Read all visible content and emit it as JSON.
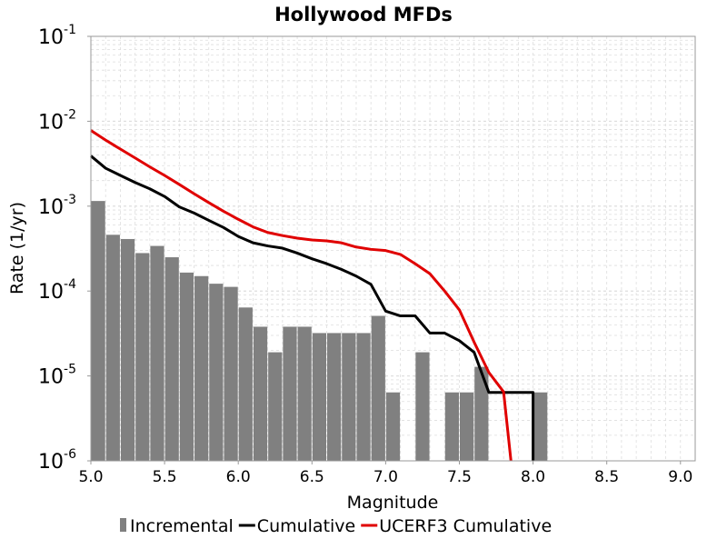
{
  "chart_data": {
    "type": "bar",
    "title": "Hollywood MFDs",
    "xlabel": "Magnitude",
    "ylabel": "Rate (1/yr)",
    "xlim": [
      5.0,
      9.1
    ],
    "ylim": [
      1e-06,
      0.1
    ],
    "yscale": "log",
    "grid": true,
    "legend_position": "bottom",
    "x_ticks": [
      "5.0",
      "5.5",
      "6.0",
      "6.5",
      "7.0",
      "7.5",
      "8.0",
      "8.5",
      "9.0"
    ],
    "y_ticks": [
      {
        "base": "10",
        "exp": "-6"
      },
      {
        "base": "10",
        "exp": "-5"
      },
      {
        "base": "10",
        "exp": "-4"
      },
      {
        "base": "10",
        "exp": "-3"
      },
      {
        "base": "10",
        "exp": "-2"
      },
      {
        "base": "10",
        "exp": "-1"
      }
    ],
    "series": [
      {
        "name": "Incremental",
        "kind": "bar",
        "color": "#808080",
        "bar_width": 0.1,
        "points": [
          [
            5.05,
            0.00115
          ],
          [
            5.15,
            0.00046
          ],
          [
            5.25,
            0.00041
          ],
          [
            5.35,
            0.00028
          ],
          [
            5.45,
            0.00034
          ],
          [
            5.55,
            0.00025
          ],
          [
            5.65,
            0.000165
          ],
          [
            5.75,
            0.00015
          ],
          [
            5.85,
            0.000122
          ],
          [
            5.95,
            0.000112
          ],
          [
            6.05,
            6.4e-05
          ],
          [
            6.15,
            3.8e-05
          ],
          [
            6.25,
            1.9e-05
          ],
          [
            6.35,
            3.8e-05
          ],
          [
            6.45,
            3.8e-05
          ],
          [
            6.55,
            3.2e-05
          ],
          [
            6.65,
            3.2e-05
          ],
          [
            6.75,
            3.2e-05
          ],
          [
            6.85,
            3.2e-05
          ],
          [
            6.95,
            5.1e-05
          ],
          [
            7.05,
            6.4e-06
          ],
          [
            7.25,
            1.9e-05
          ],
          [
            7.45,
            6.4e-06
          ],
          [
            7.55,
            6.4e-06
          ],
          [
            7.65,
            1.28e-05
          ],
          [
            8.05,
            6.4e-06
          ]
        ]
      },
      {
        "name": "Cumulative",
        "kind": "line",
        "color": "#000000",
        "points": [
          [
            5.0,
            0.0039
          ],
          [
            5.1,
            0.0028
          ],
          [
            5.2,
            0.0023
          ],
          [
            5.3,
            0.0019
          ],
          [
            5.4,
            0.0016
          ],
          [
            5.5,
            0.0013
          ],
          [
            5.6,
            0.00098
          ],
          [
            5.7,
            0.00083
          ],
          [
            5.8,
            0.00068
          ],
          [
            5.9,
            0.00056
          ],
          [
            6.0,
            0.00044
          ],
          [
            6.1,
            0.00037
          ],
          [
            6.2,
            0.00034
          ],
          [
            6.3,
            0.00032
          ],
          [
            6.4,
            0.00028
          ],
          [
            6.5,
            0.00024
          ],
          [
            6.6,
            0.00021
          ],
          [
            6.7,
            0.00018
          ],
          [
            6.8,
            0.00015
          ],
          [
            6.9,
            0.00012
          ],
          [
            7.0,
            5.8e-05
          ],
          [
            7.1,
            5.1e-05
          ],
          [
            7.2,
            5.1e-05
          ],
          [
            7.3,
            3.2e-05
          ],
          [
            7.4,
            3.2e-05
          ],
          [
            7.5,
            2.6e-05
          ],
          [
            7.6,
            1.9e-05
          ],
          [
            7.7,
            6.4e-06
          ],
          [
            8.0,
            6.4e-06
          ],
          [
            8.0,
            1e-06
          ]
        ]
      },
      {
        "name": "UCERF3 Cumulative",
        "kind": "line",
        "color": "#e00000",
        "points": [
          [
            5.0,
            0.0078
          ],
          [
            5.1,
            0.006
          ],
          [
            5.2,
            0.0047
          ],
          [
            5.3,
            0.0037
          ],
          [
            5.4,
            0.0029
          ],
          [
            5.5,
            0.0023
          ],
          [
            5.6,
            0.0018
          ],
          [
            5.7,
            0.0014
          ],
          [
            5.8,
            0.0011
          ],
          [
            5.9,
            0.00087
          ],
          [
            6.0,
            0.0007
          ],
          [
            6.1,
            0.00057
          ],
          [
            6.2,
            0.00049
          ],
          [
            6.3,
            0.00045
          ],
          [
            6.4,
            0.00042
          ],
          [
            6.5,
            0.0004
          ],
          [
            6.6,
            0.00039
          ],
          [
            6.7,
            0.00037
          ],
          [
            6.8,
            0.00033
          ],
          [
            6.9,
            0.00031
          ],
          [
            7.0,
            0.0003
          ],
          [
            7.1,
            0.00027
          ],
          [
            7.2,
            0.00021
          ],
          [
            7.3,
            0.00016
          ],
          [
            7.4,
            0.0001
          ],
          [
            7.5,
            6e-05
          ],
          [
            7.6,
            2.5e-05
          ],
          [
            7.7,
            1.1e-05
          ],
          [
            7.8,
            6.5e-06
          ],
          [
            7.85,
            1e-06
          ]
        ]
      }
    ]
  }
}
